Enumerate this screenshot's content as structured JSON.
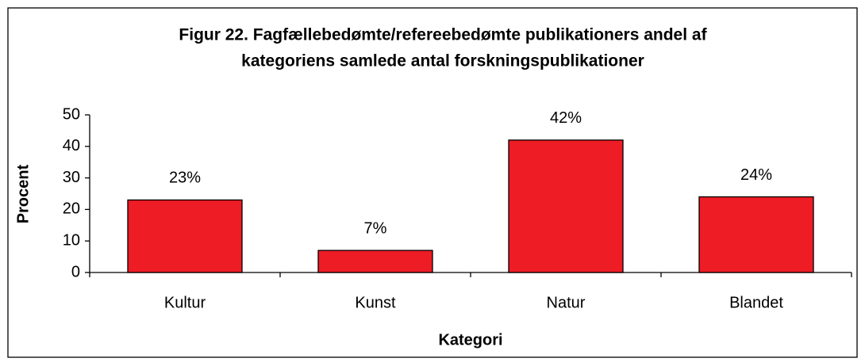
{
  "chart_data": {
    "type": "bar",
    "title": [
      "Figur 22. Fagfællebedømte/refereebedømte publikationers andel af",
      "kategoriens samlede antal forskningspublikationer"
    ],
    "xlabel": "Kategori",
    "ylabel": "Procent",
    "categories": [
      "Kultur",
      "Kunst",
      "Natur",
      "Blandet"
    ],
    "values": [
      23,
      7,
      42,
      24
    ],
    "value_labels": [
      "23%",
      "7%",
      "42%",
      "24%"
    ],
    "color": "#ee1c25",
    "ylim": [
      0,
      50
    ],
    "yticks": [
      0,
      10,
      20,
      30,
      40,
      50
    ],
    "grid": false
  }
}
